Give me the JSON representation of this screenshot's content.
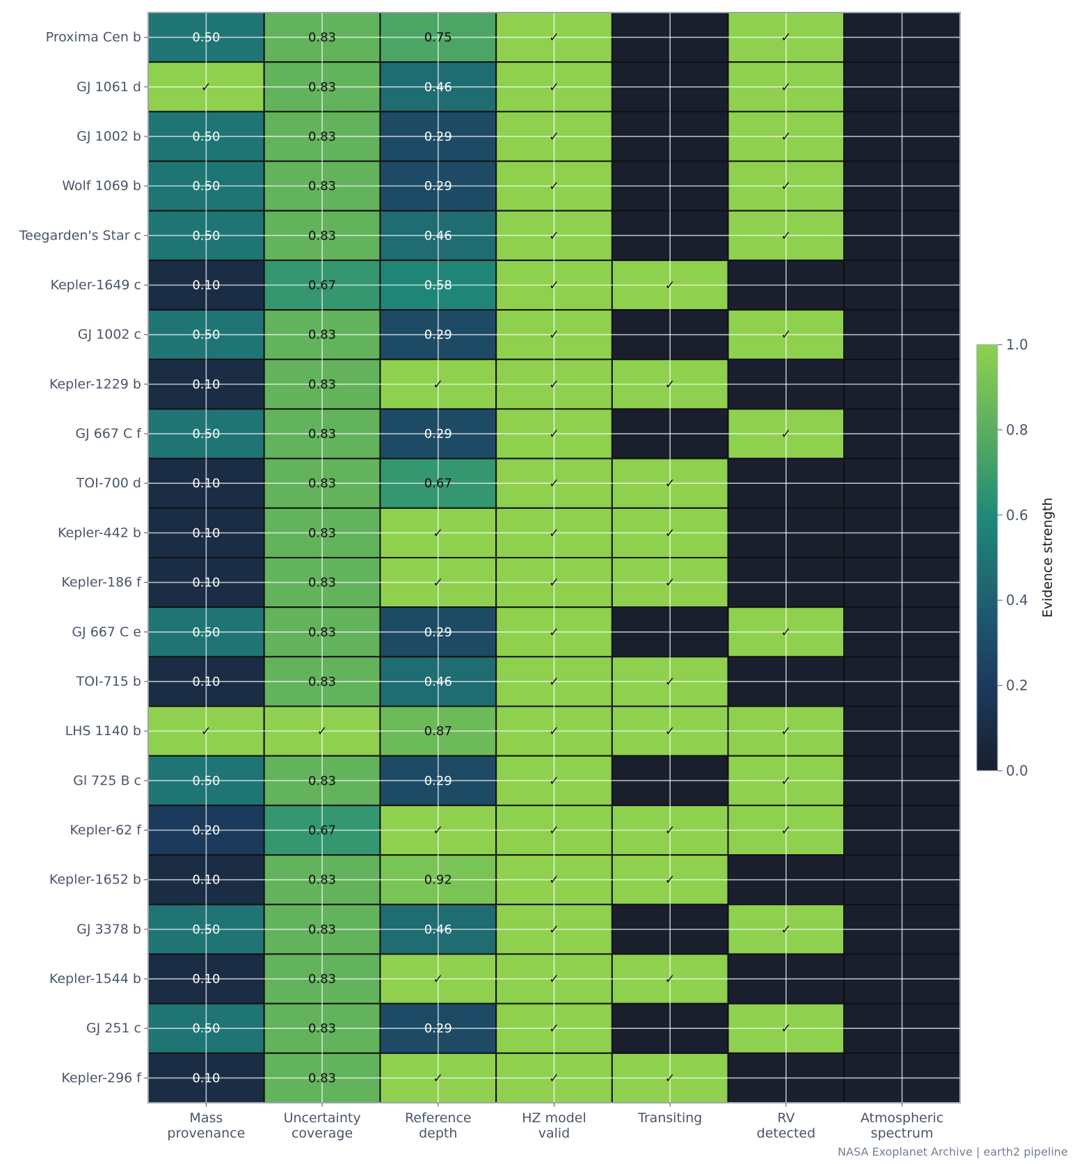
{
  "chart_data": {
    "type": "heatmap",
    "title": "",
    "rows": [
      "Proxima Cen b",
      "GJ 1061 d",
      "GJ 1002 b",
      "Wolf 1069 b",
      "Teegarden's Star c",
      "Kepler-1649 c",
      "GJ 1002 c",
      "Kepler-1229 b",
      "GJ 667 C f",
      "TOI-700 d",
      "Kepler-442 b",
      "Kepler-186 f",
      "GJ 667 C e",
      "TOI-715 b",
      "LHS 1140 b",
      "Gl 725 B c",
      "Kepler-62 f",
      "Kepler-1652 b",
      "GJ 3378 b",
      "Kepler-1544 b",
      "GJ 251 c",
      "Kepler-296 f"
    ],
    "columns": [
      {
        "line1": "Mass",
        "line2": "provenance"
      },
      {
        "line1": "Uncertainty",
        "line2": "coverage"
      },
      {
        "line1": "Reference",
        "line2": "depth"
      },
      {
        "line1": "HZ model",
        "line2": "valid"
      },
      {
        "line1": "Transiting",
        "line2": ""
      },
      {
        "line1": "RV",
        "line2": "detected"
      },
      {
        "line1": "Atmospheric",
        "line2": "spectrum"
      }
    ],
    "values": [
      [
        0.5,
        0.83,
        0.75,
        1,
        0,
        1,
        0
      ],
      [
        1,
        0.83,
        0.46,
        1,
        0,
        1,
        0
      ],
      [
        0.5,
        0.83,
        0.29,
        1,
        0,
        1,
        0
      ],
      [
        0.5,
        0.83,
        0.29,
        1,
        0,
        1,
        0
      ],
      [
        0.5,
        0.83,
        0.46,
        1,
        0,
        1,
        0
      ],
      [
        0.1,
        0.67,
        0.58,
        1,
        1,
        0,
        0
      ],
      [
        0.5,
        0.83,
        0.29,
        1,
        0,
        1,
        0
      ],
      [
        0.1,
        0.83,
        1,
        1,
        1,
        0,
        0
      ],
      [
        0.5,
        0.83,
        0.29,
        1,
        0,
        1,
        0
      ],
      [
        0.1,
        0.83,
        0.67,
        1,
        1,
        0,
        0
      ],
      [
        0.1,
        0.83,
        1,
        1,
        1,
        0,
        0
      ],
      [
        0.1,
        0.83,
        1,
        1,
        1,
        0,
        0
      ],
      [
        0.5,
        0.83,
        0.29,
        1,
        0,
        1,
        0
      ],
      [
        0.1,
        0.83,
        0.46,
        1,
        1,
        0,
        0
      ],
      [
        1,
        1,
        0.87,
        1,
        1,
        1,
        0
      ],
      [
        0.5,
        0.83,
        0.29,
        1,
        0,
        1,
        0
      ],
      [
        0.2,
        0.67,
        1,
        1,
        1,
        1,
        0
      ],
      [
        0.1,
        0.83,
        0.92,
        1,
        1,
        0,
        0
      ],
      [
        0.5,
        0.83,
        0.46,
        1,
        0,
        1,
        0
      ],
      [
        0.1,
        0.83,
        1,
        1,
        1,
        0,
        0
      ],
      [
        0.5,
        0.83,
        0.29,
        1,
        0,
        1,
        0
      ],
      [
        0.1,
        0.83,
        1,
        1,
        1,
        0,
        0
      ]
    ],
    "cell_labels": [
      [
        "0.50",
        "0.83",
        "0.75",
        "✓",
        "",
        "✓",
        ""
      ],
      [
        "✓",
        "0.83",
        "0.46",
        "✓",
        "",
        "✓",
        ""
      ],
      [
        "0.50",
        "0.83",
        "0.29",
        "✓",
        "",
        "✓",
        ""
      ],
      [
        "0.50",
        "0.83",
        "0.29",
        "✓",
        "",
        "✓",
        ""
      ],
      [
        "0.50",
        "0.83",
        "0.46",
        "✓",
        "",
        "✓",
        ""
      ],
      [
        "0.10",
        "0.67",
        "0.58",
        "✓",
        "✓",
        "",
        ""
      ],
      [
        "0.50",
        "0.83",
        "0.29",
        "✓",
        "",
        "✓",
        ""
      ],
      [
        "0.10",
        "0.83",
        "✓",
        "✓",
        "✓",
        "",
        ""
      ],
      [
        "0.50",
        "0.83",
        "0.29",
        "✓",
        "",
        "✓",
        ""
      ],
      [
        "0.10",
        "0.83",
        "0.67",
        "✓",
        "✓",
        "",
        ""
      ],
      [
        "0.10",
        "0.83",
        "✓",
        "✓",
        "✓",
        "",
        ""
      ],
      [
        "0.10",
        "0.83",
        "✓",
        "✓",
        "✓",
        "",
        ""
      ],
      [
        "0.50",
        "0.83",
        "0.29",
        "✓",
        "",
        "✓",
        ""
      ],
      [
        "0.10",
        "0.83",
        "0.46",
        "✓",
        "✓",
        "",
        ""
      ],
      [
        "✓",
        "✓",
        "0.87",
        "✓",
        "✓",
        "✓",
        ""
      ],
      [
        "0.50",
        "0.83",
        "0.29",
        "✓",
        "",
        "✓",
        ""
      ],
      [
        "0.20",
        "0.67",
        "✓",
        "✓",
        "✓",
        "✓",
        ""
      ],
      [
        "0.10",
        "0.83",
        "0.92",
        "✓",
        "✓",
        "",
        ""
      ],
      [
        "0.50",
        "0.83",
        "0.46",
        "✓",
        "",
        "✓",
        ""
      ],
      [
        "0.10",
        "0.83",
        "✓",
        "✓",
        "✓",
        "",
        ""
      ],
      [
        "0.50",
        "0.83",
        "0.29",
        "✓",
        "",
        "✓",
        ""
      ],
      [
        "0.10",
        "0.83",
        "✓",
        "✓",
        "✓",
        "",
        ""
      ]
    ],
    "colorbar": {
      "label": "Evidence strength",
      "range": [
        0,
        1
      ],
      "ticks": [
        "0.0",
        "0.2",
        "0.4",
        "0.6",
        "0.8",
        "1.0"
      ],
      "colormap": [
        "#1a1f2e",
        "#1b3a5c",
        "#1f5f70",
        "#1f8a78",
        "#5bae5f",
        "#8fd14f"
      ]
    },
    "grid": true,
    "footer": "NASA Exoplanet Archive | earth2 pipeline"
  }
}
